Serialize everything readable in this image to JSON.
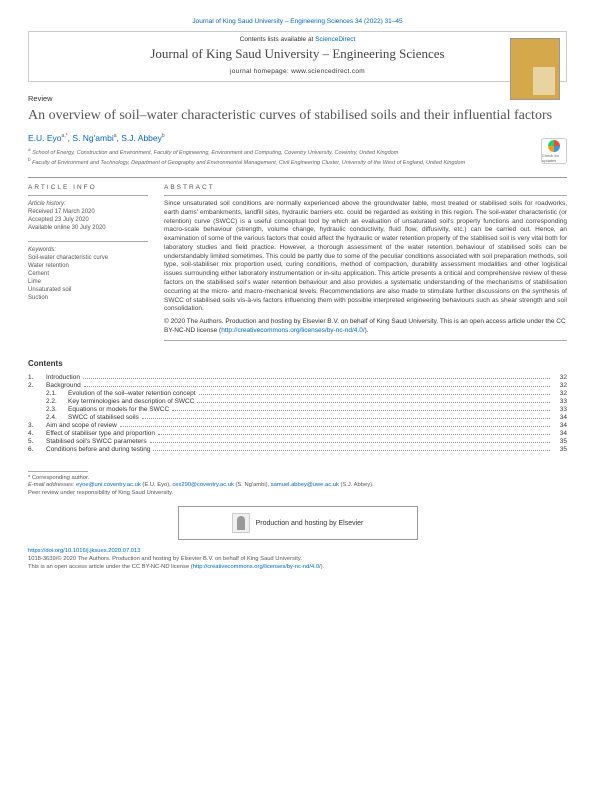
{
  "top_citation": "Journal of King Saud University – Engineering Sciences 34 (2022) 31–45",
  "contents_available": "Contents lists available at",
  "sciencedirect": "ScienceDirect",
  "journal_name": "Journal of King Saud University – Engineering Sciences",
  "homepage": "journal homepage: www.sciencedirect.com",
  "review_label": "Review",
  "title": "An overview of soil–water characteristic curves of stabilised soils and their influential factors",
  "authors": {
    "a1": "E.U. Eyo",
    "a1_sup": "a,*",
    "a2": "S. Ng'ambi",
    "a2_sup": "a",
    "a3": "S.J. Abbey",
    "a3_sup": "b"
  },
  "affiliations": {
    "a": "School of Energy, Construction and Environment, Faculty of Engineering, Environment and Computing, Coventry University, Coventry, United Kingdom",
    "b": "Faculty of Environment and Technology, Department of Geography and Environmental Management, Civil Engineering Cluster, University of the West of England, United Kingdom"
  },
  "check_updates": "Check for updates",
  "article_info_hdr": "ARTICLE INFO",
  "abstract_hdr": "ABSTRACT",
  "history_label": "Article history:",
  "history": {
    "r": "Received 17 March 2020",
    "a": "Accepted 23 July 2020",
    "o": "Available online 30 July 2020"
  },
  "keywords_label": "Keywords:",
  "keywords": [
    "Soil-water characteristic curve",
    "Water retention",
    "Cement",
    "Lime",
    "Unsaturated soil",
    "Suction"
  ],
  "abstract": "Since unsaturated soil conditions are normally experienced above the groundwater table, most treated or stabilised soils for roadworks, earth dams' embankments, landfill sites, hydraulic barriers etc. could be regarded as existing in this region. The soil-water characteristic (or retention) curve (SWCC) is a useful conceptual tool by which an evaluation of unsaturated soil's property functions and corresponding macro-scale behaviour (strength, volume change, hydraulic conductivity, fluid flow, diffusivity, etc.) can be carried out. Hence, an examination of some of the various factors that could affect the hydraulic or water retention property of the stabilised soil is very vital both for laboratory studies and field practice. However, a thorough assessment of the water retention behaviour of stabilised soils can be understandably limited sometimes. This could be partly due to some of the peculiar conditions associated with soil preparation methods, soil type, soil-stabiliser mix proportion used, curing conditions, method of compaction, durability assessment modalities and other logistical issues surrounding either laboratory instrumentation or in-situ application. This article presents a critical and comprehensive review of these factors on the stabilised soil's water retention behaviour and also provides a systematic understanding of the mechanisms of stabilisation occurring at the micro- and macro-mechanical levels. Recommendations are also made to stimulate further discussions on the synthesis of SWCC of stabilised soils vis-à-vis factors influencing them with possible interpreted engineering behaviours such as shear strength and soil consolidation.",
  "copyright": "© 2020 The Authors. Production and hosting by Elsevier B.V. on behalf of King Saud University. This is an open access article under the CC BY-NC-ND license (",
  "cc_link": "http://creativecommons.org/licenses/by-nc-nd/4.0/",
  "copyright_end": ").",
  "contents_label": "Contents",
  "toc": [
    {
      "n": "1.",
      "t": "Introduction",
      "p": "32"
    },
    {
      "n": "2.",
      "t": "Background",
      "p": "32"
    },
    {
      "n": "2.1.",
      "t": "Evolution of the soil–water retention concept",
      "p": "32",
      "sub": true
    },
    {
      "n": "2.2.",
      "t": "Key terminologies and description of SWCC",
      "p": "33",
      "sub": true
    },
    {
      "n": "2.3.",
      "t": "Equations or models for the SWCC",
      "p": "33",
      "sub": true
    },
    {
      "n": "2.4.",
      "t": "SWCC of stabilised soils",
      "p": "34",
      "sub": true
    },
    {
      "n": "3.",
      "t": "Aim and scope of review",
      "p": "34"
    },
    {
      "n": "4.",
      "t": "Effect of stabiliser type and proportion",
      "p": "34"
    },
    {
      "n": "5.",
      "t": "Stabilised soil's SWCC parameters",
      "p": "35"
    },
    {
      "n": "6.",
      "t": "Conditions before and during testing",
      "p": "35"
    }
  ],
  "corresponding": "* Corresponding author.",
  "email_label": "E-mail addresses:",
  "emails": {
    "e1": "eyoe@uni.coventry.ac.uk",
    "n1": " (E.U. Eyo), ",
    "e2": "cex290@coventry.ac.uk",
    "n2": " (S. Ng'ambi), ",
    "e3": "samuel.abbey@uwe.ac.uk",
    "n3": " (S.J. Abbey)."
  },
  "peer_review": "Peer review under responsibility of King Saud University.",
  "elsevier_text": "Production and hosting by Elsevier",
  "doi": "https://doi.org/10.1016/j.jksues.2020.07.013",
  "issn_line": "1018-3639/© 2020 The Authors. Production and hosting by Elsevier B.V. on behalf of King Saud University.",
  "oa_line": "This is an open access article under the CC BY-NC-ND license (",
  "oa_link": "http://creativecommons.org/licenses/by-nc-nd/4.0/",
  "oa_end": ")."
}
